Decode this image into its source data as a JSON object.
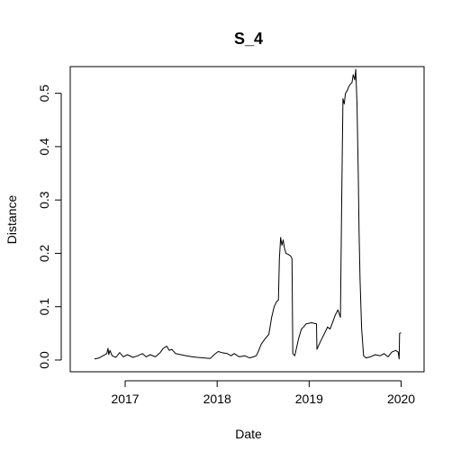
{
  "chart_data": {
    "type": "line",
    "title": "S_4",
    "xlabel": "Date",
    "ylabel": "Distance",
    "xlim": [
      "2016-05-28",
      "2020-04-01"
    ],
    "ylim": [
      -0.022,
      0.55
    ],
    "grid": false,
    "x_ticks": [
      "2017",
      "2018",
      "2019",
      "2020"
    ],
    "x_tick_dates": [
      "2017-01-01",
      "2018-01-01",
      "2019-01-01",
      "2020-01-01"
    ],
    "y_ticks": [
      "0.0",
      "0.1",
      "0.2",
      "0.3",
      "0.4",
      "0.5"
    ],
    "y_tick_values": [
      0.0,
      0.1,
      0.2,
      0.3,
      0.4,
      0.5
    ],
    "series": [
      {
        "color": "#000000",
        "x": [
          "2016-09-01",
          "2016-09-20",
          "2016-10-05",
          "2016-10-20",
          "2016-10-25",
          "2016-10-28",
          "2016-11-02",
          "2016-11-10",
          "2016-11-25",
          "2016-12-10",
          "2016-12-25",
          "2017-01-10",
          "2017-02-01",
          "2017-02-20",
          "2017-03-10",
          "2017-03-25",
          "2017-04-10",
          "2017-05-01",
          "2017-05-20",
          "2017-06-01",
          "2017-06-15",
          "2017-06-25",
          "2017-07-05",
          "2017-07-20",
          "2017-08-10",
          "2017-09-01",
          "2017-09-25",
          "2017-10-15",
          "2017-11-10",
          "2017-12-05",
          "2017-12-20",
          "2018-01-05",
          "2018-01-20",
          "2018-02-10",
          "2018-02-25",
          "2018-03-10",
          "2018-03-30",
          "2018-04-20",
          "2018-05-10",
          "2018-05-25",
          "2018-06-05",
          "2018-06-15",
          "2018-06-25",
          "2018-07-10",
          "2018-07-25",
          "2018-08-05",
          "2018-08-15",
          "2018-08-25",
          "2018-09-01",
          "2018-09-05",
          "2018-09-10",
          "2018-09-15",
          "2018-09-20",
          "2018-09-25",
          "2018-10-01",
          "2018-10-10",
          "2018-10-20",
          "2018-10-25",
          "2018-10-28",
          "2018-11-05",
          "2018-11-20",
          "2018-12-01",
          "2018-12-10",
          "2018-12-20",
          "2019-01-10",
          "2019-01-30",
          "2019-02-01",
          "2019-02-10",
          "2019-02-20",
          "2019-03-01",
          "2019-03-15",
          "2019-03-25",
          "2019-04-05",
          "2019-04-15",
          "2019-04-25",
          "2019-05-05",
          "2019-05-10",
          "2019-05-15",
          "2019-05-20",
          "2019-05-25",
          "2019-06-01",
          "2019-06-10",
          "2019-06-20",
          "2019-06-25",
          "2019-07-01",
          "2019-07-05",
          "2019-07-10",
          "2019-07-15",
          "2019-07-18",
          "2019-07-22",
          "2019-07-28",
          "2019-08-05",
          "2019-08-15",
          "2019-09-01",
          "2019-09-20",
          "2019-10-10",
          "2019-10-25",
          "2019-11-10",
          "2019-11-25",
          "2019-12-10",
          "2019-12-20",
          "2019-12-24",
          "2019-12-26",
          "2020-01-01"
        ],
        "y": [
          0.002,
          0.004,
          0.008,
          0.012,
          0.022,
          0.01,
          0.018,
          0.008,
          0.005,
          0.014,
          0.006,
          0.01,
          0.005,
          0.008,
          0.012,
          0.006,
          0.01,
          0.006,
          0.014,
          0.022,
          0.026,
          0.018,
          0.02,
          0.012,
          0.01,
          0.008,
          0.006,
          0.005,
          0.004,
          0.003,
          0.01,
          0.016,
          0.014,
          0.012,
          0.008,
          0.012,
          0.006,
          0.008,
          0.004,
          0.006,
          0.008,
          0.018,
          0.03,
          0.04,
          0.048,
          0.08,
          0.1,
          0.11,
          0.112,
          0.19,
          0.23,
          0.215,
          0.225,
          0.21,
          0.2,
          0.198,
          0.195,
          0.19,
          0.012,
          0.008,
          0.04,
          0.058,
          0.062,
          0.068,
          0.07,
          0.068,
          0.02,
          0.03,
          0.04,
          0.048,
          0.062,
          0.058,
          0.072,
          0.085,
          0.094,
          0.08,
          0.3,
          0.49,
          0.48,
          0.5,
          0.505,
          0.515,
          0.52,
          0.535,
          0.525,
          0.545,
          0.48,
          0.35,
          0.24,
          0.15,
          0.06,
          0.008,
          0.004,
          0.006,
          0.01,
          0.008,
          0.012,
          0.006,
          0.015,
          0.018,
          0.015,
          0.002,
          0.05,
          0.051
        ]
      }
    ]
  }
}
